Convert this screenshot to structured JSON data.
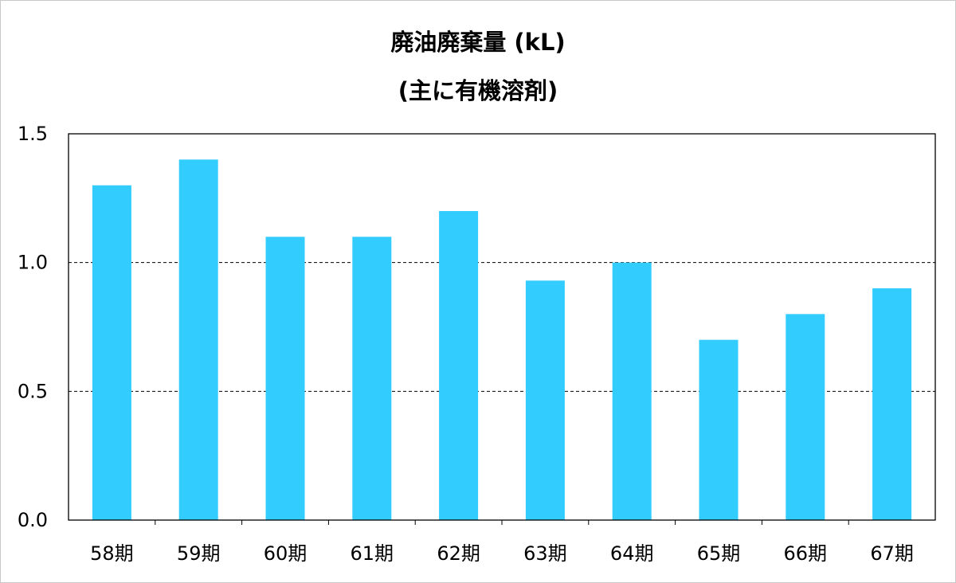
{
  "chart_data": {
    "type": "bar",
    "title": "廃油廃棄量 (kL)",
    "subtitle": "(主に有機溶剤)",
    "xlabel": "",
    "ylabel": "",
    "categories": [
      "58期",
      "59期",
      "60期",
      "61期",
      "62期",
      "63期",
      "64期",
      "65期",
      "66期",
      "67期"
    ],
    "values": [
      1.3,
      1.4,
      1.1,
      1.1,
      1.2,
      0.93,
      1.0,
      0.7,
      0.8,
      0.9
    ],
    "ylim": [
      0,
      1.5
    ],
    "yticks": [
      "0.0",
      "0.5",
      "1.0",
      "1.5"
    ],
    "grid": "horizontal dashed at 0.5 and 1.0",
    "legend": "none",
    "bar_color": "#33CCFF"
  }
}
